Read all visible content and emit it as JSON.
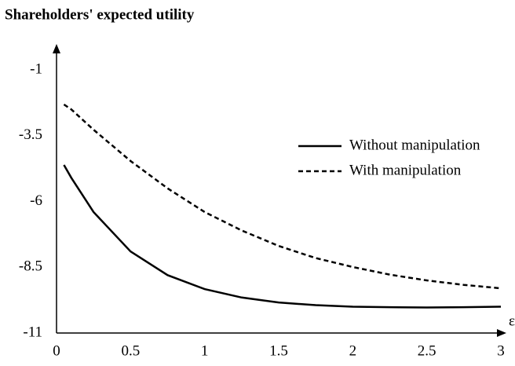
{
  "chart_data": {
    "type": "line",
    "title": "Shareholders' expected utility",
    "x_label": "ε",
    "x": [
      0.05,
      0.1,
      0.25,
      0.5,
      0.75,
      1,
      1.25,
      1.5,
      1.75,
      2,
      2.25,
      2.5,
      2.75,
      3
    ],
    "series": [
      {
        "name": "Without manipulation",
        "color": "#000000",
        "dash": "solid",
        "values": [
          -4.61,
          -5.1,
          -6.4,
          -7.9,
          -8.8,
          -9.33,
          -9.65,
          -9.84,
          -9.94,
          -10.0,
          -10.02,
          -10.03,
          -10.02,
          -10.0
        ]
      },
      {
        "name": "With manipulation",
        "color": "#000000",
        "dash": "dashed",
        "values": [
          -2.31,
          -2.5,
          -3.27,
          -4.46,
          -5.5,
          -6.4,
          -7.1,
          -7.69,
          -8.15,
          -8.49,
          -8.78,
          -9.0,
          -9.17,
          -9.3
        ]
      }
    ],
    "xlim": [
      0,
      3
    ],
    "ylim": [
      -11,
      -0.13
    ],
    "xticks": [
      0,
      0.5,
      1,
      1.5,
      2,
      2.5,
      3
    ],
    "yticks": [
      -1,
      -3.5,
      -6,
      -8.5,
      -11
    ],
    "grid": false,
    "legend": "upper right"
  }
}
